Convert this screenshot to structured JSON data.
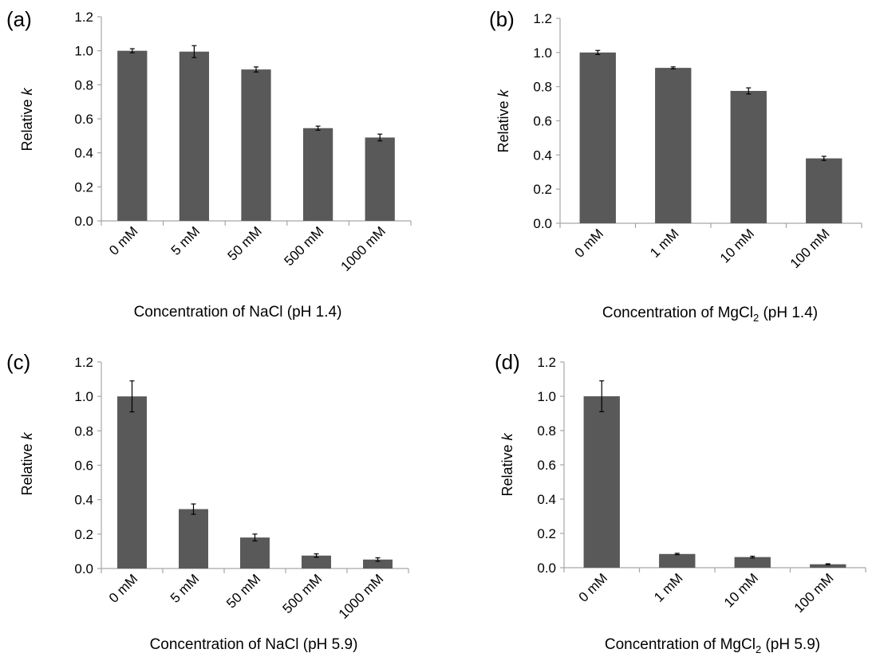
{
  "chart_data": [
    {
      "type": "bar",
      "panel_label": "(a)",
      "categories": [
        "0 mM",
        "5 mM",
        "50 mM",
        "500 mM",
        "1000 mM"
      ],
      "values": [
        1.0,
        0.995,
        0.89,
        0.545,
        0.49
      ],
      "errors": [
        0.012,
        0.035,
        0.015,
        0.012,
        0.02
      ],
      "xlabel": "Concentration of NaCl (pH 1.4)",
      "ylabel": "Relative k",
      "ylim": [
        0,
        1.2
      ],
      "yticks": [
        "0.0",
        "0.2",
        "0.4",
        "0.6",
        "0.8",
        "1.0",
        "1.2"
      ],
      "bar_color": "#595959",
      "grid": false
    },
    {
      "type": "bar",
      "panel_label": "(b)",
      "categories": [
        "0 mM",
        "1 mM",
        "10 mM",
        "100 mM"
      ],
      "values": [
        1.0,
        0.91,
        0.775,
        0.38
      ],
      "errors": [
        0.012,
        0.006,
        0.018,
        0.012
      ],
      "xlabel": "Concentration of MgCl2 (pH 1.4)",
      "ylabel": "Relative k",
      "ylim": [
        0,
        1.2
      ],
      "yticks": [
        "0.0",
        "0.2",
        "0.4",
        "0.6",
        "0.8",
        "1.0",
        "1.2"
      ],
      "bar_color": "#595959",
      "grid": false
    },
    {
      "type": "bar",
      "panel_label": "(c)",
      "categories": [
        "0 mM",
        "5 mM",
        "50 mM",
        "500 mM",
        "1000 mM"
      ],
      "values": [
        1.0,
        0.345,
        0.18,
        0.075,
        0.052
      ],
      "errors": [
        0.09,
        0.03,
        0.02,
        0.01,
        0.01
      ],
      "xlabel": "Concentration of NaCl (pH 5.9)",
      "ylabel": "Relative k",
      "ylim": [
        0,
        1.2
      ],
      "yticks": [
        "0.0",
        "0.2",
        "0.4",
        "0.6",
        "0.8",
        "1.0",
        "1.2"
      ],
      "bar_color": "#595959",
      "grid": false
    },
    {
      "type": "bar",
      "panel_label": "(d)",
      "categories": [
        "0 mM",
        "1 mM",
        "10 mM",
        "100 mM"
      ],
      "values": [
        1.0,
        0.08,
        0.062,
        0.02
      ],
      "errors": [
        0.09,
        0.004,
        0.005,
        0.003
      ],
      "xlabel": "Concentration of MgCl2 (pH 5.9)",
      "ylabel": "Relative k",
      "ylim": [
        0,
        1.2
      ],
      "yticks": [
        "0.0",
        "0.2",
        "0.4",
        "0.6",
        "0.8",
        "1.0",
        "1.2"
      ],
      "bar_color": "#595959",
      "grid": false
    }
  ]
}
